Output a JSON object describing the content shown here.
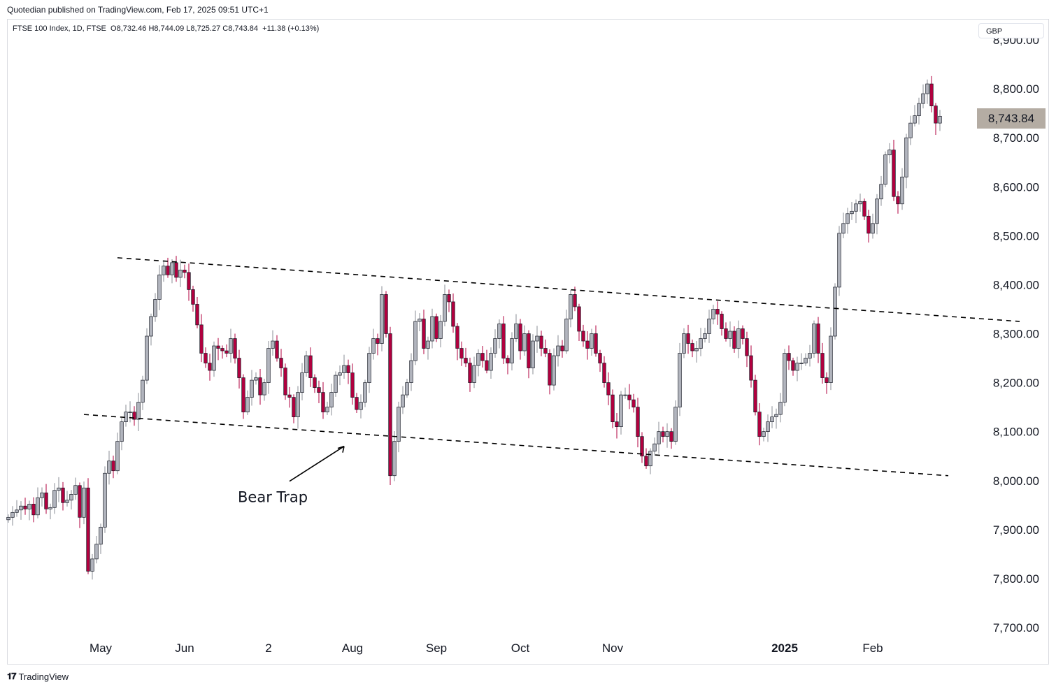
{
  "header": {
    "published": "Quotedian published on TradingView.com, Feb 17, 2025 09:51 UTC+1"
  },
  "legend": {
    "symbol": "FTSE 100 Index, 1D, FTSE",
    "open": "O8,732.46",
    "high": "H8,744.09",
    "low": "L8,725.27",
    "close": "C8,743.84",
    "change": "+11.38 (+0.13%)"
  },
  "currency": "GBP",
  "last_price": "8,743.84",
  "brand": "TradingView",
  "colors": {
    "up": "#b2b5be",
    "down": "#b2003f",
    "wick": "#b2003f",
    "tag": "#b4aca3",
    "trend": "#000000"
  },
  "chart_data": {
    "type": "candlestick",
    "title": "",
    "ylim": [
      7700,
      8900
    ],
    "y_ticks": [
      7700,
      7800,
      7900,
      8000,
      8100,
      8200,
      8300,
      8400,
      8500,
      8600,
      8700,
      8800,
      8900
    ],
    "y_tick_labels": [
      "7,700.00",
      "7,800.00",
      "7,900.00",
      "8,000.00",
      "8,100.00",
      "8,200.00",
      "8,300.00",
      "8,400.00",
      "8,500.00",
      "8,600.00",
      "8,700.00",
      "8,800.00",
      "8,900.00"
    ],
    "x_labels": [
      "May",
      "Jun",
      "2",
      "Aug",
      "Sep",
      "Oct",
      "Nov",
      "2025",
      "Feb"
    ],
    "x_label_index": [
      22,
      42,
      62,
      82,
      102,
      122,
      144,
      185,
      206
    ],
    "close": [
      7925,
      7935,
      7940,
      7948,
      7942,
      7952,
      7930,
      7965,
      7975,
      7942,
      7945,
      7980,
      7985,
      7955,
      7960,
      7972,
      7990,
      7925,
      7985,
      7815,
      7840,
      7870,
      7905,
      8015,
      8040,
      8020,
      8080,
      8120,
      8140,
      8140,
      8125,
      8160,
      8205,
      8295,
      8335,
      8370,
      8420,
      8438,
      8420,
      8445,
      8415,
      8430,
      8425,
      8390,
      8360,
      8318,
      8260,
      8240,
      8225,
      8275,
      8270,
      8265,
      8260,
      8290,
      8250,
      8210,
      8140,
      8170,
      8205,
      8210,
      8175,
      8200,
      8270,
      8285,
      8250,
      8230,
      8175,
      8170,
      8130,
      8180,
      8220,
      8255,
      8210,
      8190,
      8180,
      8140,
      8150,
      8180,
      8215,
      8220,
      8235,
      8220,
      8170,
      8145,
      8160,
      8200,
      8260,
      8290,
      8280,
      8380,
      8300,
      8010,
      8080,
      8150,
      8175,
      8200,
      8245,
      8325,
      8330,
      8270,
      8285,
      8335,
      8290,
      8325,
      8380,
      8365,
      8315,
      8270,
      8250,
      8240,
      8200,
      8235,
      8260,
      8245,
      8225,
      8260,
      8290,
      8320,
      8250,
      8240,
      8290,
      8320,
      8265,
      8300,
      8230,
      8285,
      8295,
      8270,
      8260,
      8195,
      8255,
      8275,
      8265,
      8330,
      8380,
      8355,
      8305,
      8285,
      8270,
      8300,
      8260,
      8240,
      8200,
      8175,
      8120,
      8110,
      8175,
      8175,
      8165,
      8150,
      8090,
      8050,
      8030,
      8060,
      8075,
      8100,
      8090,
      8100,
      8080,
      8150,
      8260,
      8300,
      8280,
      8265,
      8270,
      8290,
      8300,
      8330,
      8350,
      8340,
      8310,
      8290,
      8305,
      8270,
      8310,
      8290,
      8255,
      8205,
      8140,
      8090,
      8100,
      8120,
      8130,
      8135,
      8160,
      8260,
      8245,
      8225,
      8240,
      8240,
      8250,
      8260,
      8320,
      8260,
      8210,
      8200,
      8295,
      8395,
      8505,
      8525,
      8545,
      8550,
      8565,
      8570,
      8540,
      8505,
      8525,
      8575,
      8605,
      8665,
      8675,
      8580,
      8565,
      8620,
      8700,
      8730,
      8745,
      8770,
      8790,
      8810,
      8765,
      8730,
      8744
    ],
    "trendlines": [
      {
        "from": [
          26,
          8455
        ],
        "to": [
          241,
          8325
        ]
      },
      {
        "from": [
          18,
          8135
        ],
        "to": [
          224,
          8010
        ]
      }
    ],
    "annotation": {
      "text": "Bear Trap",
      "target": [
        82,
        8070
      ]
    }
  }
}
